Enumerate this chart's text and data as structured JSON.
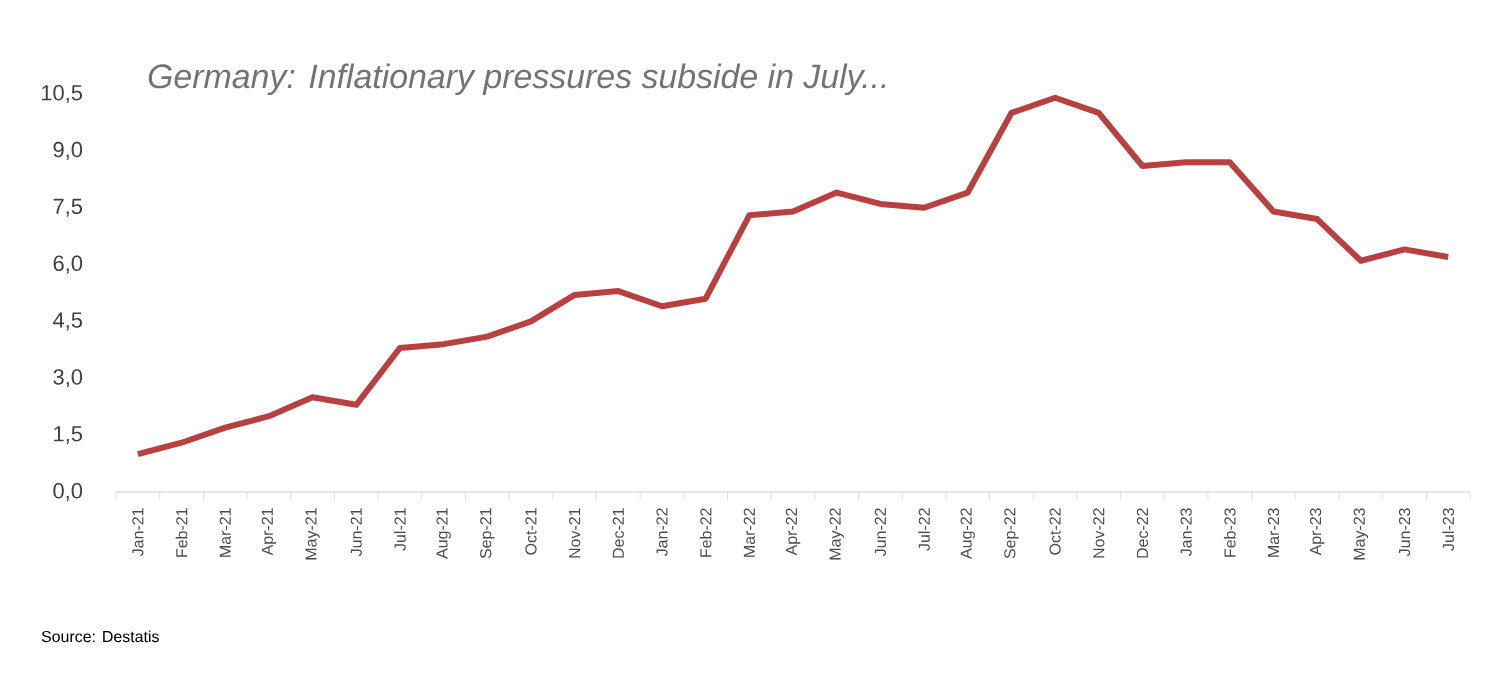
{
  "chart_data": {
    "type": "line",
    "title": "Germany: Inflationary pressures subside  in July...",
    "annotations": [
      "Source: Destatis"
    ],
    "categories": [
      "Jan-21",
      "Feb-21",
      "Mar-21",
      "Apr-21",
      "May-21",
      "Jun-21",
      "Jul-21",
      "Aug-21",
      "Sep-21",
      "Oct-21",
      "Nov-21",
      "Dec-21",
      "Jan-22",
      "Feb-22",
      "Mar-22",
      "Apr-22",
      "May-22",
      "Jun-22",
      "Jul-22",
      "Aug-22",
      "Sep-22",
      "Oct-22",
      "Nov-22",
      "Dec-22",
      "Jan-23",
      "Feb-23",
      "Mar-23",
      "Apr-23",
      "May-23",
      "Jun-23",
      "Jul-23"
    ],
    "values": [
      1.0,
      1.3,
      1.7,
      2.0,
      2.5,
      2.3,
      3.8,
      3.9,
      4.1,
      4.5,
      5.2,
      5.3,
      4.9,
      5.1,
      7.3,
      7.4,
      7.9,
      7.6,
      7.5,
      7.9,
      10.0,
      10.4,
      10.0,
      8.6,
      8.7,
      8.7,
      7.4,
      7.2,
      6.1,
      6.4,
      6.2
    ],
    "color": "#b94040",
    "ylim": [
      0,
      10.5
    ],
    "yticks": [
      {
        "value": 0,
        "label": "0,0"
      },
      {
        "value": 1.5,
        "label": "1,5"
      },
      {
        "value": 3,
        "label": "3,0"
      },
      {
        "value": 4.5,
        "label": "4,5"
      },
      {
        "value": 6,
        "label": "6,0"
      },
      {
        "value": 7.5,
        "label": "7,5"
      },
      {
        "value": 9,
        "label": "9,0"
      },
      {
        "value": 10.5,
        "label": "10,5"
      }
    ],
    "marker": "none",
    "line_style": "solid"
  }
}
